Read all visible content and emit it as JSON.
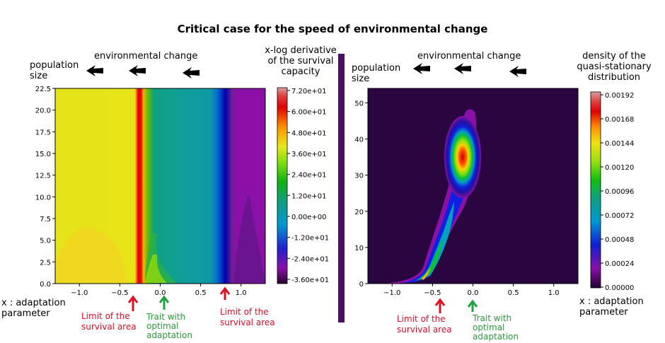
{
  "title": "Critical case for the speed of environmental change",
  "left_panel": {
    "env_change_label": "environmental change",
    "population_label": "population\nsize",
    "x_label": "x : adaptation\nparameter",
    "colorbar_title": "x-log derivative\nof the survival\ncapacity",
    "annotations": [
      {
        "text": "Limit of the\nsurvival area",
        "color": "red"
      },
      {
        "text": "Trait with\noptimal\nadaptation",
        "color": "green"
      },
      {
        "text": "Limit of the\nsurvival area",
        "color": "red"
      }
    ]
  },
  "right_panel": {
    "env_change_label": "environmental change",
    "population_label": "population\nsize",
    "x_label": "x : adaptation\nparameter",
    "colorbar_title": "density of the\nquasi-stationary\ndistribution",
    "annotations": [
      {
        "text": "Limit of the\nsurvival area",
        "color": "red"
      },
      {
        "text": "Trait with\noptimal\nadaptation",
        "color": "green"
      }
    ]
  },
  "chart_data": [
    {
      "type": "heatmap",
      "description_source": "left contour plot",
      "x_ticks": [
        "−1.0",
        "−0.5",
        "0.0",
        "0.5",
        "1.0"
      ],
      "x_tick_values": [
        -1.0,
        -0.5,
        0.0,
        0.5,
        1.0
      ],
      "y_ticks": [
        "0.0",
        "2.5",
        "5.0",
        "7.5",
        "10.0",
        "12.5",
        "15.0",
        "17.5",
        "20.0",
        "22.5"
      ],
      "xlim": [
        -1.3,
        1.3
      ],
      "ylim": [
        0,
        22.5
      ],
      "colorbar_ticks": [
        "7.20e+01",
        "6.00e+01",
        "4.80e+01",
        "3.60e+01",
        "2.40e+01",
        "1.20e+01",
        "0.00e+00",
        "-1.20e+01",
        "-2.40e+01",
        "-3.60e+01"
      ],
      "colorbar_range": [
        -48,
        72
      ],
      "features": {
        "survival_limit_left_x": -0.35,
        "survival_limit_right_x": 0.8,
        "optimal_trait_x": 0.0
      }
    },
    {
      "type": "heatmap",
      "description_source": "right contour plot",
      "x_ticks": [
        "−1.0",
        "−0.5",
        "0.0",
        "0.5",
        "1.0"
      ],
      "x_tick_values": [
        -1.0,
        -0.5,
        0.0,
        0.5,
        1.0
      ],
      "y_ticks": [
        "0",
        "10",
        "20",
        "30",
        "40",
        "50"
      ],
      "y_tick_values": [
        0,
        10,
        20,
        30,
        40,
        50
      ],
      "xlim": [
        -1.3,
        1.3
      ],
      "ylim": [
        0,
        54
      ],
      "colorbar_ticks": [
        "0.00192",
        "0.00168",
        "0.00144",
        "0.00120",
        "0.00096",
        "0.00072",
        "0.00048",
        "0.00024",
        "0.00000"
      ],
      "colorbar_range": [
        0,
        0.00208
      ],
      "features": {
        "peak_x": -0.15,
        "peak_y": 35,
        "survival_limit_left_x": -0.4,
        "optimal_trait_x": 0.0
      }
    }
  ],
  "colors": {
    "separator": "#4b1260",
    "annotation_red": "#d0102b",
    "annotation_green": "#2a9a3a",
    "right_background": "#2a0640"
  }
}
